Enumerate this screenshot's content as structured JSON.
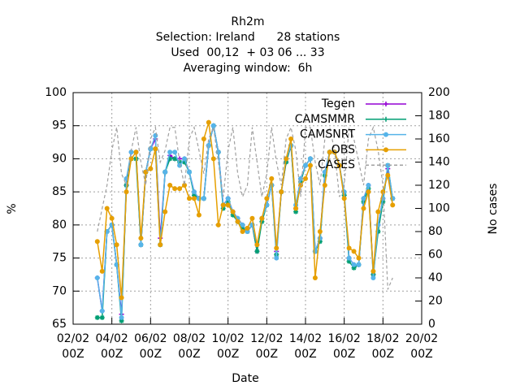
{
  "chart_data": {
    "type": "line",
    "title": [
      "Rh2m",
      "Selection: Ireland      28 stations",
      "Used  00,12  + 03 06 ... 33",
      "Averaging window:  6h"
    ],
    "x_label": "Date",
    "y_label": "%",
    "y2_label": "No cases",
    "xlim": [
      "02/02 00Z",
      "20/02 00Z"
    ],
    "xticks": [
      {
        "value": "02/02 00Z",
        "label": "02/02\n00Z"
      },
      {
        "value": "04/02 00Z",
        "label": "04/02\n00Z"
      },
      {
        "value": "06/02 00Z",
        "label": "06/02\n00Z"
      },
      {
        "value": "08/02 00Z",
        "label": "08/02\n00Z"
      },
      {
        "value": "10/02 00Z",
        "label": "10/02\n00Z"
      },
      {
        "value": "12/02 00Z",
        "label": "12/02\n00Z"
      },
      {
        "value": "14/02 00Z",
        "label": "14/02\n00Z"
      },
      {
        "value": "16/02 00Z",
        "label": "16/02\n00Z"
      },
      {
        "value": "18/02 00Z",
        "label": "18/02\n00Z"
      },
      {
        "value": "20/02 00Z",
        "label": "20/02\n00Z"
      }
    ],
    "ylim": [
      65,
      100
    ],
    "yticks": [
      65,
      70,
      75,
      80,
      85,
      90,
      95,
      100
    ],
    "y2lim": [
      0,
      200
    ],
    "y2ticks": [
      0,
      20,
      40,
      60,
      80,
      100,
      120,
      140,
      160,
      180,
      200
    ],
    "grid": true,
    "legend": "top-right",
    "x": [
      "03/02 06Z",
      "03/02 12Z",
      "03/02 18Z",
      "04/02 00Z",
      "04/02 06Z",
      "04/02 12Z",
      "04/02 18Z",
      "05/02 00Z",
      "05/02 06Z",
      "05/02 12Z",
      "05/02 18Z",
      "06/02 00Z",
      "06/02 06Z",
      "06/02 12Z",
      "06/02 18Z",
      "07/02 00Z",
      "07/02 06Z",
      "07/02 12Z",
      "07/02 18Z",
      "08/02 00Z",
      "08/02 06Z",
      "08/02 12Z",
      "08/02 18Z",
      "09/02 00Z",
      "09/02 06Z",
      "09/02 12Z",
      "09/02 18Z",
      "10/02 00Z",
      "10/02 06Z",
      "10/02 12Z",
      "10/02 18Z",
      "11/02 00Z",
      "11/02 06Z",
      "11/02 12Z",
      "11/02 18Z",
      "12/02 00Z",
      "12/02 06Z",
      "12/02 12Z",
      "12/02 18Z",
      "13/02 00Z",
      "13/02 06Z",
      "13/02 12Z",
      "13/02 18Z",
      "14/02 00Z",
      "14/02 06Z",
      "14/02 12Z",
      "14/02 18Z",
      "15/02 00Z",
      "15/02 06Z",
      "15/02 12Z",
      "15/02 18Z",
      "16/02 00Z",
      "16/02 06Z",
      "16/02 12Z",
      "16/02 18Z",
      "17/02 00Z",
      "17/02 06Z",
      "17/02 12Z",
      "17/02 18Z",
      "18/02 00Z",
      "18/02 06Z",
      "18/02 12Z"
    ],
    "series": [
      {
        "name": "Tegen",
        "color": "#9400d3",
        "marker": "plus",
        "values": [
          72,
          67,
          79,
          80,
          74,
          66.5,
          86,
          91,
          91,
          77,
          88,
          91.5,
          93,
          78,
          88,
          90.5,
          90,
          90,
          90,
          88,
          85,
          84,
          84,
          92,
          95,
          91,
          83,
          84,
          82,
          81,
          80,
          79,
          80,
          76,
          81,
          83,
          86,
          76,
          85,
          89.5,
          92,
          82.5,
          87,
          89,
          90,
          76,
          78,
          88,
          91,
          91,
          89,
          84.5,
          75,
          74,
          74,
          84,
          86,
          72.5,
          80,
          84,
          88.5,
          84
        ]
      },
      {
        "name": "CAMSMMR",
        "color": "#009e73",
        "marker": "star",
        "values": [
          66,
          66,
          79,
          80,
          74,
          65.5,
          86,
          90,
          90,
          77,
          88,
          91.5,
          91.5,
          77,
          88,
          90,
          90,
          89.5,
          89.5,
          88,
          84.5,
          84,
          84,
          92,
          95,
          91,
          82.5,
          83.5,
          81.5,
          80.5,
          79.5,
          79,
          80,
          76,
          80.5,
          83,
          86,
          75.5,
          85,
          89.5,
          92,
          82,
          86.5,
          89,
          90,
          76,
          77.5,
          87.5,
          91,
          91,
          89,
          84.5,
          74.5,
          73.5,
          74,
          83.5,
          85.5,
          72.5,
          79,
          83.5,
          89,
          84
        ]
      },
      {
        "name": "CAMSNRT",
        "color": "#56b4e9",
        "marker": "circle",
        "values": [
          72,
          67,
          79,
          80,
          74,
          66,
          87,
          91,
          91,
          77,
          88,
          91.5,
          93.5,
          77,
          88,
          91,
          91,
          89,
          90,
          88,
          85,
          84,
          84,
          92,
          95,
          91,
          83,
          84,
          82,
          81,
          80,
          79,
          80,
          77,
          81,
          83,
          86,
          75,
          85,
          90,
          92,
          83,
          87,
          89,
          90,
          76,
          78,
          88,
          91,
          91,
          89,
          85,
          75,
          74,
          74,
          84,
          86,
          72,
          80,
          84,
          89,
          84
        ]
      },
      {
        "name": "OBS",
        "color": "#e69f00",
        "marker": "circle",
        "values": [
          77.5,
          73,
          82.5,
          81,
          77,
          69,
          85,
          90,
          91,
          78,
          88,
          88.5,
          91.5,
          77,
          82,
          86,
          85.5,
          85.5,
          86,
          84,
          84,
          81.5,
          93,
          95.5,
          90,
          80,
          83,
          83,
          82,
          80.5,
          79,
          79.5,
          81,
          77,
          81,
          84,
          87,
          76.5,
          85,
          90,
          93,
          82.5,
          86,
          87,
          89,
          72,
          79,
          86,
          91,
          91,
          89,
          84,
          76.5,
          76,
          75,
          82.5,
          85,
          73,
          82,
          85,
          87.5,
          83
        ]
      },
      {
        "name": "CASES",
        "color": "#a0a0a0",
        "axis": "y2",
        "dash": true,
        "values": [
          80,
          100,
          120,
          150,
          170,
          130,
          120,
          150,
          170,
          140,
          120,
          160,
          170,
          140,
          150,
          170,
          170,
          140,
          120,
          160,
          170,
          150,
          130,
          160,
          170,
          140,
          110,
          150,
          170,
          130,
          110,
          120,
          170,
          140,
          110,
          130,
          170,
          140,
          120,
          160,
          170,
          150,
          110,
          170,
          170,
          140,
          120,
          160,
          170,
          150,
          110,
          120,
          170,
          160,
          140,
          120,
          160,
          170,
          150,
          120,
          30,
          40
        ]
      }
    ]
  }
}
